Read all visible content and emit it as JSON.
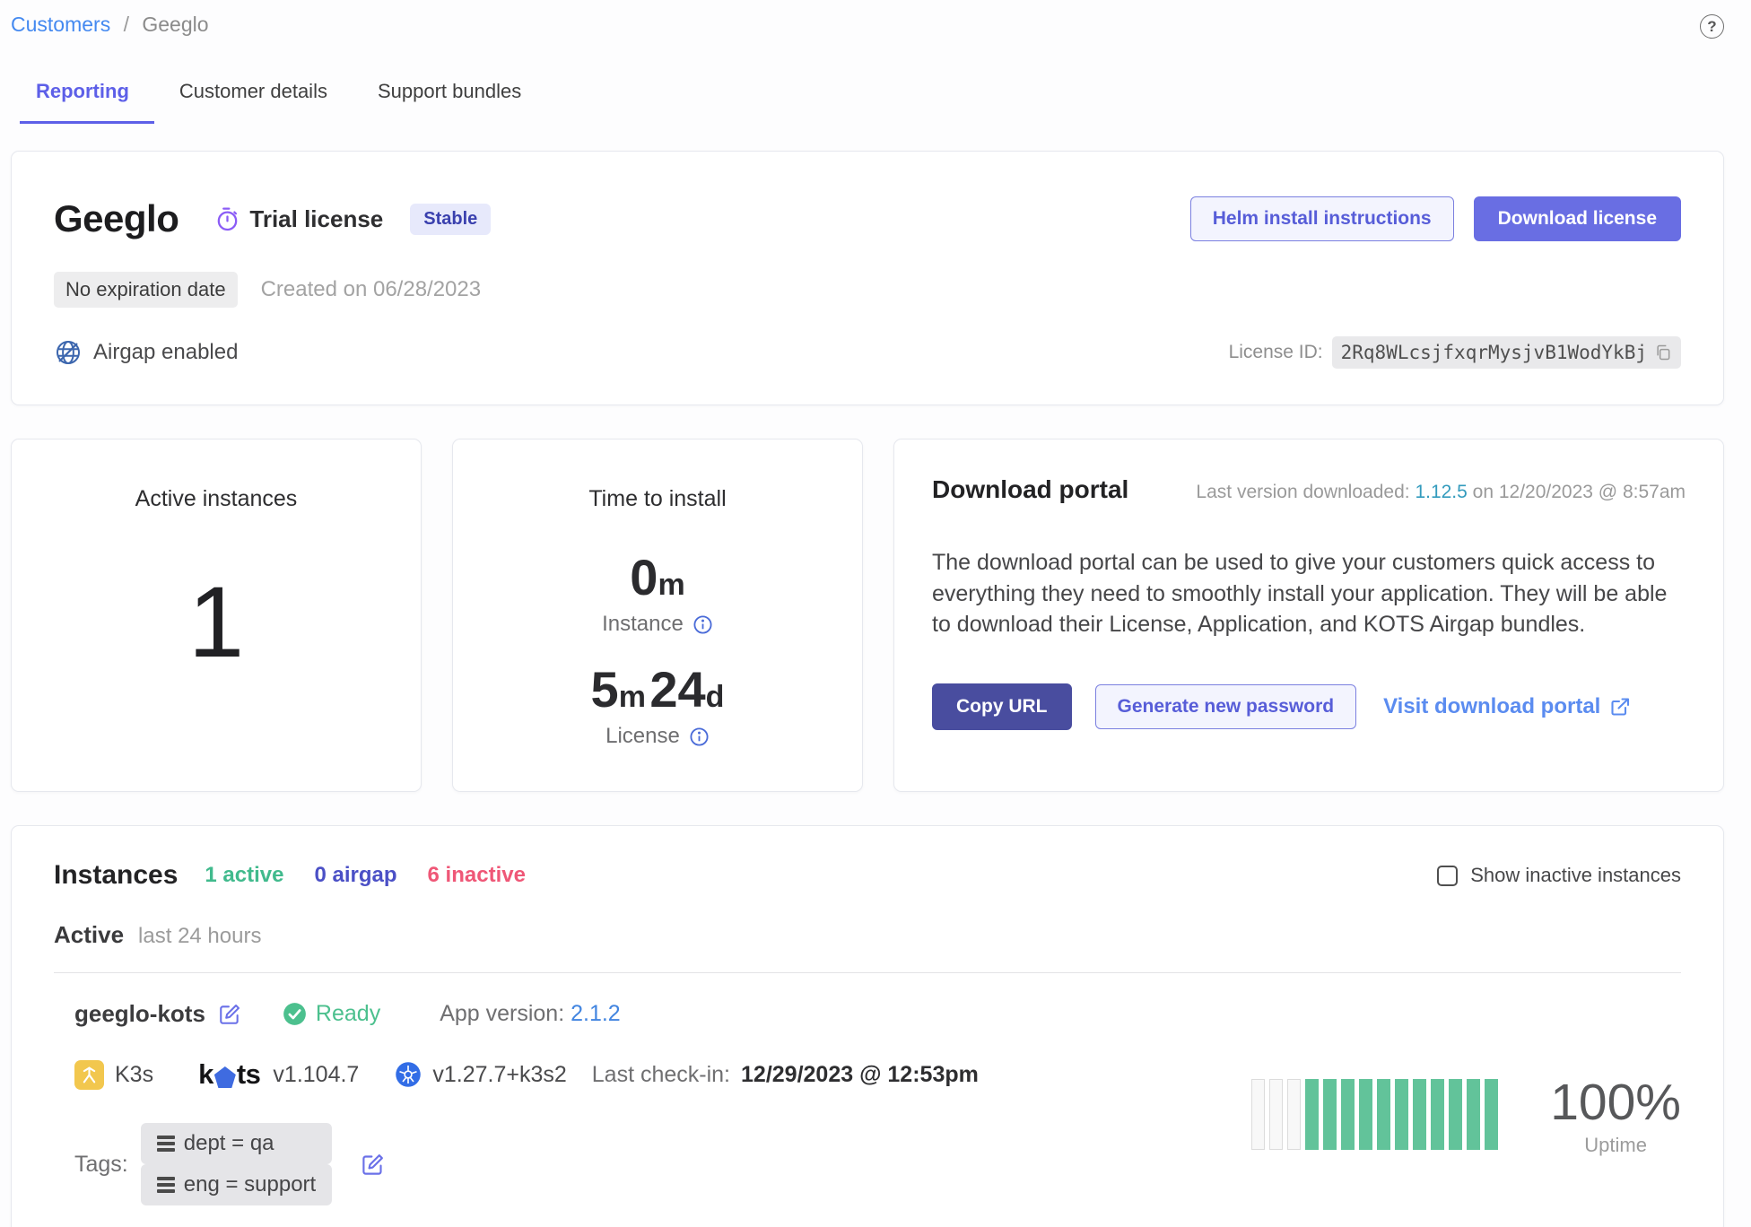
{
  "breadcrumb": {
    "customers": "Customers",
    "separator": "/",
    "current": "Geeglo"
  },
  "help_glyph": "?",
  "tabs": [
    {
      "label": "Reporting",
      "active": true
    },
    {
      "label": "Customer details",
      "active": false
    },
    {
      "label": "Support bundles",
      "active": false
    }
  ],
  "license_card": {
    "name": "Geeglo",
    "license_type": "Trial license",
    "channel_badge": "Stable",
    "expiration_badge": "No expiration date",
    "created_text": "Created on 06/28/2023",
    "airgap_label": "Airgap enabled",
    "helm_button": "Helm install instructions",
    "download_button": "Download license",
    "license_id_label": "License ID:",
    "license_id": "2Rq8WLcsjfxqrMysjvB1WodYkBj"
  },
  "metrics": {
    "active_instances": {
      "title": "Active instances",
      "value": "1"
    },
    "time_to_install": {
      "title": "Time to install",
      "instance": {
        "value": "0",
        "unit": "m",
        "label": "Instance"
      },
      "license": {
        "parts": [
          {
            "value": "5",
            "unit": "m"
          },
          {
            "value": "24",
            "unit": "d"
          }
        ],
        "label": "License"
      }
    }
  },
  "download_portal": {
    "title": "Download portal",
    "last_version_prefix": "Last version downloaded:",
    "last_version": "1.12.5",
    "last_version_suffix": "on 12/20/2023 @ 8:57am",
    "description": "The download portal can be used to give your customers quick access to everything they need to smoothly install your application. They will be able to download their License, Application, and KOTS Airgap bundles.",
    "copy_url_button": "Copy URL",
    "generate_password_button": "Generate new password",
    "visit_portal_link": "Visit download portal"
  },
  "instances": {
    "title": "Instances",
    "counts": [
      {
        "label": "1 active",
        "color": "#41ba8d"
      },
      {
        "label": "0 airgap",
        "color": "#4b50c6"
      },
      {
        "label": "6 inactive",
        "color": "#ef5777"
      }
    ],
    "show_inactive_label": "Show inactive instances",
    "group_title": "Active",
    "group_subtitle": "last 24 hours",
    "instance": {
      "name": "geeglo-kots",
      "status": "Ready",
      "app_version_label": "App version:",
      "app_version": "2.1.2",
      "distribution": "K3s",
      "kots_logo": {
        "pre": "k",
        "post": "ts"
      },
      "kots_version": "v1.104.7",
      "k8s_version": "v1.27.7+k3s2",
      "last_checkin_label": "Last check-in:",
      "last_checkin": "12/29/2023 @ 12:53pm",
      "tags_label": "Tags:",
      "tags": [
        "dept = qa",
        "eng = support"
      ],
      "uptime_percent": "100%",
      "uptime_label": "Uptime"
    }
  },
  "uptime_chart": {
    "type": "bar",
    "total_bars": 14,
    "empty_bars": 3,
    "filled_bars": 11,
    "filled_color": "#62c39a",
    "empty_color": "#f8f8f8"
  },
  "colors": {
    "accent_indigo": "#5d5fe8",
    "link_blue": "#4489f0",
    "active_green": "#41ba8d",
    "inactive_pink": "#ef5777",
    "uptime_green": "#62c39a"
  }
}
